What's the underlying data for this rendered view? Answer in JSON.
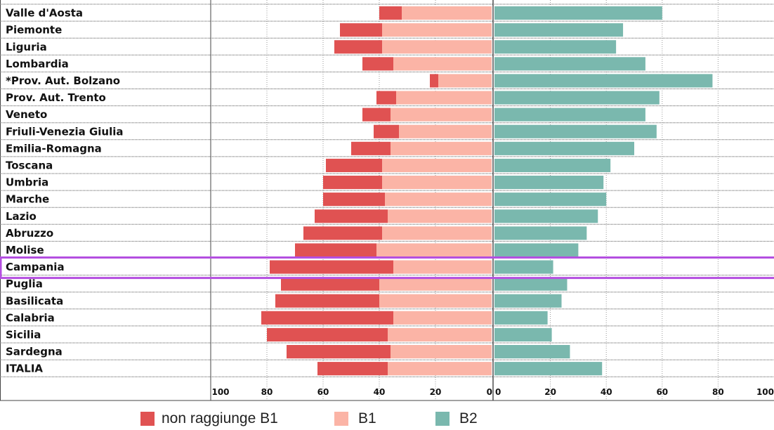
{
  "chart_data": {
    "type": "bar",
    "orientation": "horizontal-diverging",
    "categories": [
      "Valle d'Aosta",
      "Piemonte",
      "Liguria",
      "Lombardia",
      "*Prov. Aut. Bolzano",
      "Prov. Aut. Trento",
      "Veneto",
      "Friuli-Venezia Giulia",
      "Emilia-Romagna",
      "Toscana",
      "Umbria",
      "Marche",
      "Lazio",
      "Abruzzo",
      "Molise",
      "Campania",
      "Puglia",
      "Basilicata",
      "Calabria",
      "Sicilia",
      "Sardegna",
      "ITALIA"
    ],
    "series": [
      {
        "name": "non raggiunge B1",
        "side": "left",
        "color": "#e05252",
        "values": [
          8,
          15,
          17,
          11,
          3,
          7,
          10,
          9,
          14,
          20,
          21,
          22,
          26,
          28,
          29,
          44,
          35,
          37,
          47,
          43,
          37,
          25
        ]
      },
      {
        "name": "B1",
        "side": "left",
        "color": "#fbb4a6",
        "values": [
          32,
          39,
          39,
          35,
          19,
          34,
          36,
          33,
          36,
          39,
          39,
          38,
          37,
          39,
          41,
          35,
          40,
          40,
          35,
          37,
          36,
          37
        ]
      },
      {
        "name": "B2",
        "side": "right",
        "color": "#7ab8ae",
        "values": [
          60,
          46,
          43.5,
          54,
          78,
          59,
          54,
          58,
          50,
          41.5,
          39,
          40,
          37,
          33,
          30,
          21,
          26,
          24,
          19,
          20.5,
          27,
          38.5
        ]
      }
    ],
    "highlight": "Campania",
    "highlight_color": "#b44fe0",
    "xlim_left": [
      100,
      0
    ],
    "xlim_right": [
      0,
      100
    ],
    "ticks_left": [
      "100",
      "80",
      "60",
      "40",
      "20",
      "0"
    ],
    "ticks_right": [
      "0",
      "20",
      "40",
      "60",
      "80",
      "100"
    ],
    "grid": true,
    "legend_position": "bottom"
  }
}
